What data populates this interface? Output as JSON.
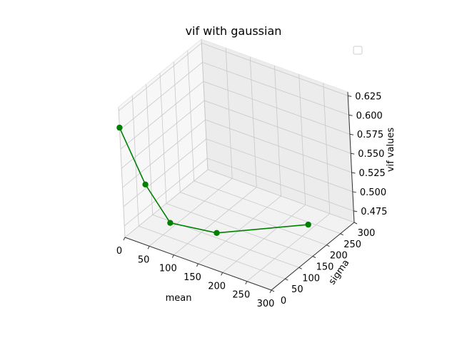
{
  "chart_data": {
    "type": "line",
    "projection": "3d",
    "title": "vif with gaussian",
    "xlabel": "mean",
    "ylabel": "sigma",
    "zlabel": "vif values",
    "xlim": [
      0,
      300
    ],
    "ylim": [
      0,
      300
    ],
    "zlim": [
      0.46,
      0.63
    ],
    "xticks": [
      "0",
      "50",
      "100",
      "150",
      "200",
      "250",
      "300"
    ],
    "yticks": [
      "0",
      "50",
      "100",
      "150",
      "200",
      "250",
      "300"
    ],
    "zticks": [
      "0.475",
      "0.500",
      "0.525",
      "0.550",
      "0.575",
      "0.600",
      "0.625"
    ],
    "grid": true,
    "legend": "top-right",
    "series": [
      {
        "color": "#008000",
        "marker": "circle",
        "x": [
          0,
          30,
          60,
          120,
          240
        ],
        "y": [
          0,
          30,
          60,
          120,
          240
        ],
        "z": [
          0.603,
          0.527,
          0.475,
          0.458,
          0.461
        ]
      }
    ]
  }
}
